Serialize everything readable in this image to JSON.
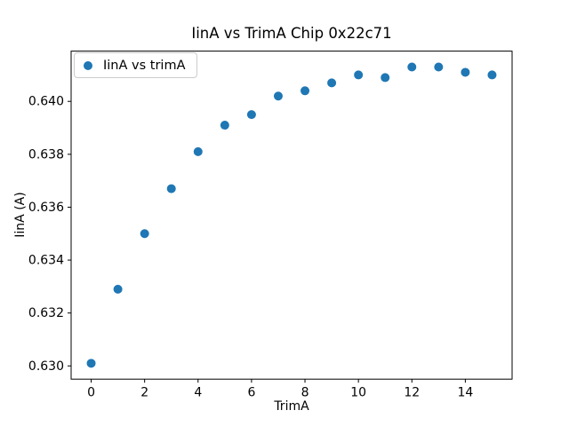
{
  "figure": {
    "background_color": "#ffffff",
    "text_color": "#000000"
  },
  "chart_data": {
    "type": "scatter",
    "title": "IinA vs TrimA Chip 0x22c71",
    "xlabel": "TrimA",
    "ylabel": "IinA (A)",
    "legend": {
      "label": "IinA vs trimA",
      "location": "upper left"
    },
    "marker_color": "#1f77b4",
    "marker_radius_px": 5,
    "grid": false,
    "x": [
      0,
      1,
      2,
      3,
      4,
      5,
      6,
      7,
      8,
      9,
      10,
      11,
      12,
      13,
      14,
      15
    ],
    "y": [
      0.6301,
      0.6329,
      0.635,
      0.6367,
      0.6381,
      0.6391,
      0.6395,
      0.6402,
      0.6404,
      0.6407,
      0.641,
      0.6409,
      0.6413,
      0.6413,
      0.6411,
      0.641
    ],
    "xlim": [
      -0.75,
      15.75
    ],
    "ylim": [
      0.6295,
      0.6419
    ],
    "xticks": {
      "values": [
        0,
        2,
        4,
        6,
        8,
        10,
        12,
        14
      ],
      "labels": [
        "0",
        "2",
        "4",
        "6",
        "8",
        "10",
        "12",
        "14"
      ]
    },
    "yticks": {
      "values": [
        0.63,
        0.632,
        0.634,
        0.636,
        0.638,
        0.64
      ],
      "labels": [
        "0.630",
        "0.632",
        "0.634",
        "0.636",
        "0.638",
        "0.640"
      ]
    }
  }
}
